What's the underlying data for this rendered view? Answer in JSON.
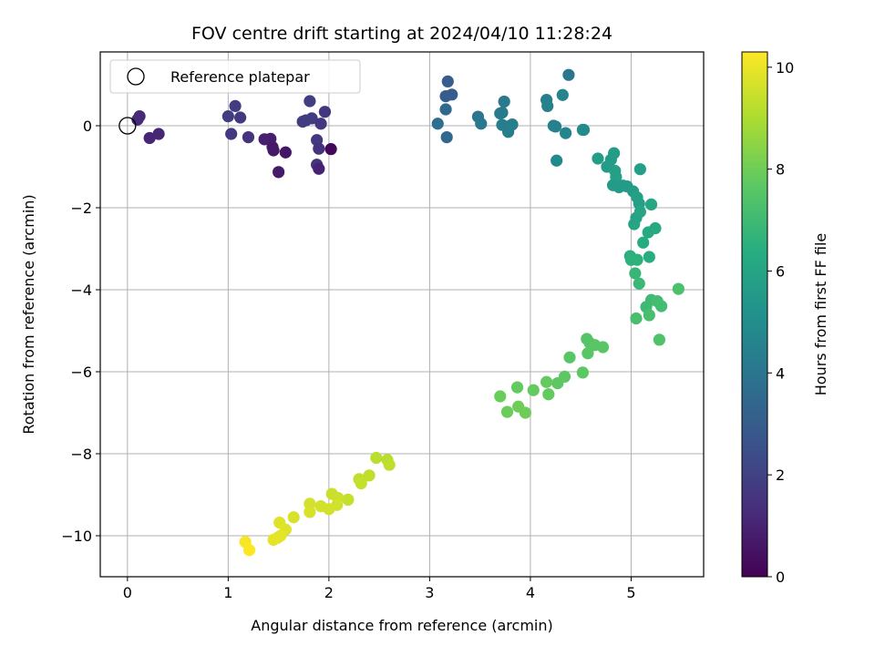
{
  "chart_data": {
    "type": "scatter",
    "title": "FOV centre drift starting at 2024/04/10 11:28:24",
    "xlabel": "Angular distance from reference (arcmin)",
    "ylabel": "Rotation from reference (arcmin)",
    "xlim": [
      -0.27,
      5.72
    ],
    "ylim": [
      -11.0,
      1.8
    ],
    "xticks": [
      0,
      1,
      2,
      3,
      4,
      5
    ],
    "yticks": [
      0,
      -2,
      -4,
      -6,
      -8,
      -10
    ],
    "grid": true,
    "legend": {
      "position": "top-left",
      "entries": [
        "Reference platepar"
      ]
    },
    "colorbar": {
      "label": "Hours from first FF file",
      "colormap": "viridis",
      "min": 0,
      "max": 10.3,
      "ticks": [
        0,
        2,
        4,
        6,
        8,
        10
      ]
    },
    "reference_point": {
      "x": 0,
      "y": 0
    },
    "points": [
      {
        "x": 0.1,
        "y": 0.15,
        "c": 1.2
      },
      {
        "x": 0.12,
        "y": 0.23,
        "c": 1.2
      },
      {
        "x": 0.22,
        "y": -0.3,
        "c": 1.1
      },
      {
        "x": 0.31,
        "y": -0.2,
        "c": 1.1
      },
      {
        "x": 1.0,
        "y": 0.23,
        "c": 1.8
      },
      {
        "x": 1.07,
        "y": 0.48,
        "c": 1.8
      },
      {
        "x": 1.12,
        "y": 0.2,
        "c": 1.7
      },
      {
        "x": 1.03,
        "y": -0.2,
        "c": 1.7
      },
      {
        "x": 1.2,
        "y": -0.28,
        "c": 1.5
      },
      {
        "x": 1.36,
        "y": -0.33,
        "c": 0.9
      },
      {
        "x": 1.42,
        "y": -0.32,
        "c": 0.9
      },
      {
        "x": 1.44,
        "y": -0.52,
        "c": 0.7
      },
      {
        "x": 1.45,
        "y": -0.6,
        "c": 0.7
      },
      {
        "x": 1.5,
        "y": -1.13,
        "c": 0.7
      },
      {
        "x": 1.57,
        "y": -0.65,
        "c": 0.6
      },
      {
        "x": 1.74,
        "y": 0.1,
        "c": 1.8
      },
      {
        "x": 1.77,
        "y": 0.13,
        "c": 1.8
      },
      {
        "x": 1.81,
        "y": 0.6,
        "c": 1.8
      },
      {
        "x": 1.83,
        "y": 0.18,
        "c": 1.8
      },
      {
        "x": 1.88,
        "y": -0.35,
        "c": 1.7
      },
      {
        "x": 1.92,
        "y": 0.05,
        "c": 1.6
      },
      {
        "x": 1.96,
        "y": 0.34,
        "c": 1.6
      },
      {
        "x": 1.9,
        "y": -0.56,
        "c": 1.5
      },
      {
        "x": 1.88,
        "y": -0.95,
        "c": 1.5
      },
      {
        "x": 1.9,
        "y": -1.05,
        "c": 1.0
      },
      {
        "x": 2.02,
        "y": -0.57,
        "c": 0.2
      },
      {
        "x": 3.08,
        "y": 0.05,
        "c": 3.7
      },
      {
        "x": 3.16,
        "y": 0.4,
        "c": 3.5
      },
      {
        "x": 3.16,
        "y": 0.72,
        "c": 3.0
      },
      {
        "x": 3.18,
        "y": 1.08,
        "c": 3.0
      },
      {
        "x": 3.22,
        "y": 0.76,
        "c": 3.0
      },
      {
        "x": 3.17,
        "y": -0.28,
        "c": 3.5
      },
      {
        "x": 3.48,
        "y": 0.22,
        "c": 4.0
      },
      {
        "x": 3.51,
        "y": 0.05,
        "c": 4.1
      },
      {
        "x": 3.7,
        "y": 0.3,
        "c": 4.2
      },
      {
        "x": 3.72,
        "y": 0.32,
        "c": 4.2
      },
      {
        "x": 3.74,
        "y": 0.59,
        "c": 4.2
      },
      {
        "x": 3.72,
        "y": 0.02,
        "c": 4.3
      },
      {
        "x": 3.78,
        "y": -0.15,
        "c": 4.3
      },
      {
        "x": 3.8,
        "y": 0.0,
        "c": 4.3
      },
      {
        "x": 3.82,
        "y": 0.03,
        "c": 4.4
      },
      {
        "x": 4.16,
        "y": 0.63,
        "c": 4.4
      },
      {
        "x": 4.17,
        "y": 0.48,
        "c": 4.5
      },
      {
        "x": 4.23,
        "y": 0.0,
        "c": 4.5
      },
      {
        "x": 4.25,
        "y": -0.02,
        "c": 4.5
      },
      {
        "x": 4.32,
        "y": 0.75,
        "c": 4.6
      },
      {
        "x": 4.35,
        "y": -0.18,
        "c": 4.6
      },
      {
        "x": 4.38,
        "y": 1.24,
        "c": 4.0
      },
      {
        "x": 4.26,
        "y": -0.85,
        "c": 4.8
      },
      {
        "x": 4.52,
        "y": -0.1,
        "c": 4.9
      },
      {
        "x": 4.53,
        "y": -0.1,
        "c": 4.9
      },
      {
        "x": 4.67,
        "y": -0.8,
        "c": 5.7
      },
      {
        "x": 4.8,
        "y": -0.83,
        "c": 5.6
      },
      {
        "x": 4.76,
        "y": -1.0,
        "c": 5.6
      },
      {
        "x": 4.83,
        "y": -0.67,
        "c": 5.7
      },
      {
        "x": 4.84,
        "y": -1.1,
        "c": 5.8
      },
      {
        "x": 4.85,
        "y": -1.25,
        "c": 5.8
      },
      {
        "x": 4.82,
        "y": -1.45,
        "c": 5.6
      },
      {
        "x": 4.88,
        "y": -1.5,
        "c": 5.6
      },
      {
        "x": 4.92,
        "y": -1.46,
        "c": 5.6
      },
      {
        "x": 4.96,
        "y": -1.48,
        "c": 5.6
      },
      {
        "x": 5.02,
        "y": -1.6,
        "c": 5.7
      },
      {
        "x": 5.06,
        "y": -1.75,
        "c": 5.8
      },
      {
        "x": 5.09,
        "y": -1.06,
        "c": 5.8
      },
      {
        "x": 5.08,
        "y": -1.9,
        "c": 5.8
      },
      {
        "x": 5.05,
        "y": -2.25,
        "c": 5.9
      },
      {
        "x": 5.03,
        "y": -2.4,
        "c": 6.0
      },
      {
        "x": 5.09,
        "y": -2.1,
        "c": 6.0
      },
      {
        "x": 5.2,
        "y": -1.92,
        "c": 6.1
      },
      {
        "x": 5.17,
        "y": -2.6,
        "c": 6.2
      },
      {
        "x": 5.12,
        "y": -2.85,
        "c": 6.3
      },
      {
        "x": 5.24,
        "y": -2.5,
        "c": 6.2
      },
      {
        "x": 5.18,
        "y": -3.2,
        "c": 6.4
      },
      {
        "x": 4.99,
        "y": -3.18,
        "c": 6.5
      },
      {
        "x": 5.0,
        "y": -3.27,
        "c": 6.6
      },
      {
        "x": 5.06,
        "y": -3.27,
        "c": 6.6
      },
      {
        "x": 5.04,
        "y": -3.6,
        "c": 6.8
      },
      {
        "x": 5.08,
        "y": -3.85,
        "c": 6.9
      },
      {
        "x": 5.15,
        "y": -4.42,
        "c": 7.0
      },
      {
        "x": 5.2,
        "y": -4.25,
        "c": 7.0
      },
      {
        "x": 5.26,
        "y": -4.28,
        "c": 7.1
      },
      {
        "x": 5.3,
        "y": -4.4,
        "c": 7.1
      },
      {
        "x": 5.18,
        "y": -4.62,
        "c": 7.2
      },
      {
        "x": 5.05,
        "y": -4.7,
        "c": 7.2
      },
      {
        "x": 5.47,
        "y": -3.98,
        "c": 7.3
      },
      {
        "x": 5.28,
        "y": -5.22,
        "c": 7.4
      },
      {
        "x": 4.56,
        "y": -5.2,
        "c": 7.5
      },
      {
        "x": 4.59,
        "y": -5.3,
        "c": 7.5
      },
      {
        "x": 4.64,
        "y": -5.35,
        "c": 7.6
      },
      {
        "x": 4.72,
        "y": -5.4,
        "c": 7.6
      },
      {
        "x": 4.57,
        "y": -5.55,
        "c": 7.6
      },
      {
        "x": 4.39,
        "y": -5.65,
        "c": 7.6
      },
      {
        "x": 4.52,
        "y": -6.02,
        "c": 7.7
      },
      {
        "x": 4.34,
        "y": -6.12,
        "c": 7.7
      },
      {
        "x": 4.27,
        "y": -6.28,
        "c": 7.7
      },
      {
        "x": 4.16,
        "y": -6.25,
        "c": 7.8
      },
      {
        "x": 4.18,
        "y": -6.55,
        "c": 7.8
      },
      {
        "x": 4.03,
        "y": -6.45,
        "c": 7.8
      },
      {
        "x": 3.87,
        "y": -6.38,
        "c": 7.8
      },
      {
        "x": 3.7,
        "y": -6.6,
        "c": 7.9
      },
      {
        "x": 3.77,
        "y": -6.98,
        "c": 7.9
      },
      {
        "x": 3.88,
        "y": -6.85,
        "c": 8.0
      },
      {
        "x": 3.95,
        "y": -7.0,
        "c": 8.0
      },
      {
        "x": 2.47,
        "y": -8.1,
        "c": 9.2
      },
      {
        "x": 2.58,
        "y": -8.15,
        "c": 9.2
      },
      {
        "x": 2.6,
        "y": -8.27,
        "c": 9.3
      },
      {
        "x": 2.4,
        "y": -8.53,
        "c": 9.3
      },
      {
        "x": 2.3,
        "y": -8.62,
        "c": 9.3
      },
      {
        "x": 2.32,
        "y": -8.72,
        "c": 9.4
      },
      {
        "x": 2.19,
        "y": -9.12,
        "c": 9.4
      },
      {
        "x": 2.03,
        "y": -8.98,
        "c": 9.5
      },
      {
        "x": 2.09,
        "y": -9.08,
        "c": 9.5
      },
      {
        "x": 1.92,
        "y": -9.28,
        "c": 9.6
      },
      {
        "x": 2.08,
        "y": -9.25,
        "c": 9.6
      },
      {
        "x": 2.0,
        "y": -9.35,
        "c": 9.6
      },
      {
        "x": 1.81,
        "y": -9.22,
        "c": 9.6
      },
      {
        "x": 1.81,
        "y": -9.42,
        "c": 9.7
      },
      {
        "x": 1.65,
        "y": -9.55,
        "c": 9.7
      },
      {
        "x": 1.51,
        "y": -9.68,
        "c": 9.8
      },
      {
        "x": 1.57,
        "y": -9.85,
        "c": 9.8
      },
      {
        "x": 1.52,
        "y": -10.0,
        "c": 9.9
      },
      {
        "x": 1.49,
        "y": -10.05,
        "c": 9.9
      },
      {
        "x": 1.45,
        "y": -10.1,
        "c": 9.9
      },
      {
        "x": 1.17,
        "y": -10.15,
        "c": 10.2
      },
      {
        "x": 1.21,
        "y": -10.35,
        "c": 10.3
      }
    ]
  }
}
